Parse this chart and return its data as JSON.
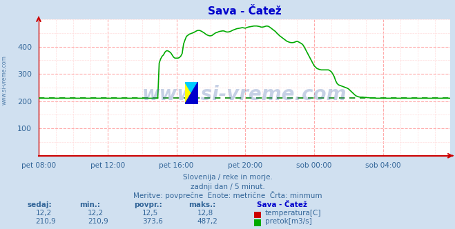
{
  "title": "Sava - Čatež",
  "title_color": "#0000cc",
  "bg_color": "#d0e0f0",
  "plot_bg_color": "#ffffff",
  "grid_color_major": "#ffaaaa",
  "grid_color_minor": "#ffdddd",
  "line_color_flow": "#00aa00",
  "avg_line_color": "#008800",
  "avg_line_value": 210.9,
  "x_tick_labels": [
    "pet 08:00",
    "pet 12:00",
    "pet 16:00",
    "pet 20:00",
    "sob 00:00",
    "sob 04:00"
  ],
  "x_tick_positions": [
    0,
    48,
    96,
    144,
    192,
    240
  ],
  "ylim": [
    0,
    500
  ],
  "yticks": [
    100,
    200,
    300,
    400
  ],
  "xlabel_color": "#336699",
  "ylabel_color": "#336699",
  "watermark": "www.si-vreme.com",
  "watermark_color": "#4466aa",
  "subtitle1": "Slovenija / reke in morje.",
  "subtitle2": "zadnji dan / 5 minut.",
  "subtitle3": "Meritve: povprečne  Enote: metrične  Črta: minmum",
  "subtitle_color": "#336699",
  "sidebar_text": "www.si-vreme.com",
  "sidebar_color": "#336699",
  "table_headers": [
    "sedaj:",
    "min.:",
    "povpr.:",
    "maks.:"
  ],
  "table_row1": [
    "12,2",
    "12,2",
    "12,5",
    "12,8"
  ],
  "table_row2": [
    "210,9",
    "210,9",
    "373,6",
    "487,2"
  ],
  "legend_label1": "temperatura[C]",
  "legend_label2": "pretok[m3/s]",
  "legend_station": "Sava - Čatež",
  "legend_color1": "#cc0000",
  "legend_color2": "#00aa00",
  "n_points": 288,
  "flow_data": [
    211,
    211,
    211,
    211,
    211,
    211,
    211,
    211,
    211,
    211,
    211,
    211,
    211,
    211,
    211,
    211,
    211,
    211,
    211,
    211,
    211,
    211,
    211,
    211,
    211,
    211,
    211,
    211,
    211,
    211,
    211,
    211,
    211,
    211,
    211,
    211,
    211,
    211,
    211,
    211,
    211,
    211,
    211,
    211,
    211,
    211,
    211,
    211,
    211,
    211,
    211,
    211,
    211,
    211,
    211,
    211,
    211,
    211,
    211,
    211,
    211,
    211,
    211,
    211,
    211,
    211,
    211,
    211,
    211,
    211,
    211,
    211,
    211,
    211,
    211,
    211,
    211,
    211,
    211,
    211,
    211,
    211,
    211,
    211,
    340,
    355,
    365,
    370,
    380,
    385,
    385,
    382,
    378,
    370,
    362,
    358,
    358,
    358,
    360,
    365,
    375,
    410,
    425,
    438,
    442,
    446,
    448,
    450,
    452,
    455,
    458,
    460,
    460,
    458,
    455,
    452,
    448,
    444,
    442,
    440,
    440,
    442,
    446,
    450,
    452,
    454,
    456,
    457,
    458,
    458,
    456,
    454,
    454,
    455,
    457,
    460,
    462,
    464,
    466,
    467,
    468,
    469,
    470,
    469,
    468,
    470,
    472,
    473,
    474,
    475,
    476,
    476,
    476,
    475,
    474,
    472,
    472,
    473,
    475,
    476,
    475,
    472,
    468,
    464,
    460,
    456,
    450,
    445,
    440,
    436,
    432,
    428,
    424,
    420,
    418,
    416,
    415,
    415,
    416,
    418,
    420,
    418,
    415,
    412,
    408,
    400,
    390,
    380,
    370,
    360,
    350,
    340,
    330,
    325,
    320,
    318,
    316,
    315,
    315,
    315,
    315,
    315,
    315,
    312,
    308,
    300,
    290,
    275,
    265,
    260,
    258,
    256,
    254,
    252,
    250,
    248,
    245,
    240,
    235,
    230,
    225,
    220,
    218,
    216,
    215,
    215,
    215,
    214,
    214,
    213,
    213,
    212,
    212,
    212,
    212,
    211,
    211,
    211,
    211,
    211,
    211,
    211,
    211,
    211,
    211,
    211,
    211,
    211,
    211,
    211,
    211,
    211,
    211,
    211,
    211,
    211,
    211,
    211,
    211,
    211,
    211,
    211,
    211,
    211,
    211,
    211,
    211,
    211,
    211,
    211,
    211,
    211,
    211,
    211,
    211,
    211,
    211,
    211,
    211,
    211,
    211,
    211,
    211,
    211,
    211,
    211,
    211,
    211
  ]
}
